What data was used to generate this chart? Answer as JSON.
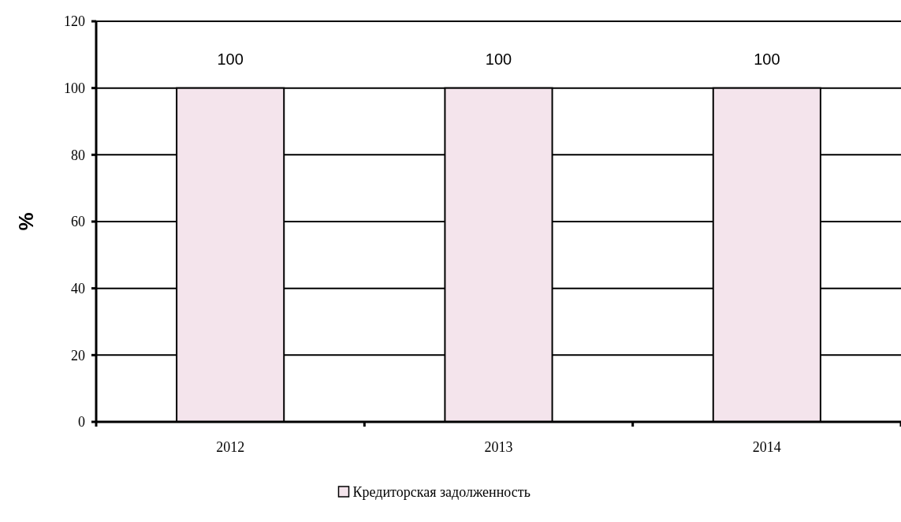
{
  "chart_data": {
    "type": "bar",
    "ylabel": "%",
    "categories": [
      "2012",
      "2013",
      "2014"
    ],
    "series": [
      {
        "name": "Кредиторская задолженность",
        "color": "#f4e4ec",
        "values": [
          100,
          100,
          100
        ]
      }
    ],
    "ylim": [
      0,
      120
    ],
    "yticks": [
      0,
      20,
      40,
      60,
      80,
      100,
      120
    ],
    "grid": "y",
    "legend": "bottom",
    "data_labels": true
  }
}
